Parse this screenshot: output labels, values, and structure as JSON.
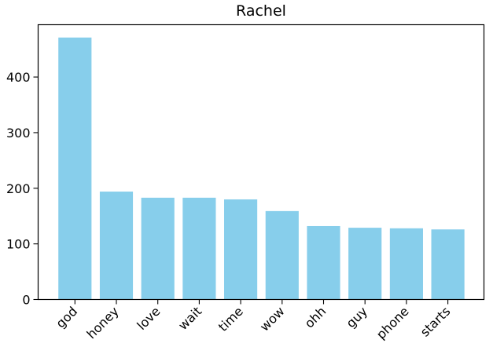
{
  "chart_data": {
    "type": "bar",
    "title": "Rachel",
    "xlabel": "",
    "ylabel": "",
    "categories": [
      "god",
      "honey",
      "love",
      "wait",
      "time",
      "wow",
      "ohh",
      "guy",
      "phone",
      "starts"
    ],
    "values": [
      471,
      194,
      183,
      183,
      180,
      159,
      132,
      129,
      128,
      126
    ],
    "ylim": [
      0,
      494
    ],
    "yticks": [
      "0",
      "100",
      "200",
      "300",
      "400"
    ],
    "bar_color": "#87ceeb",
    "grid": false,
    "legend": "none"
  }
}
